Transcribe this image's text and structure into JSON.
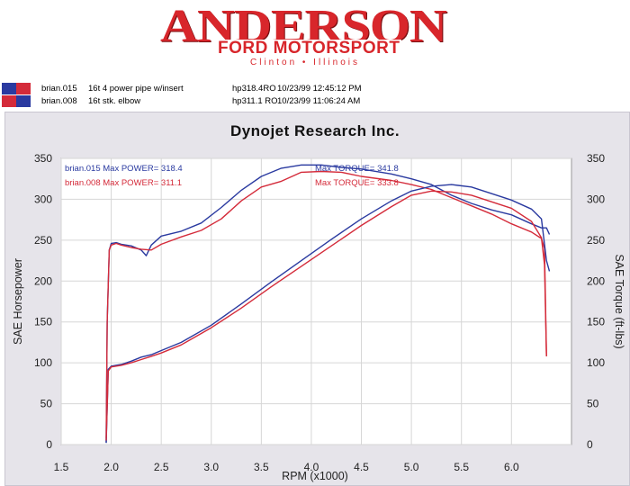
{
  "logo": {
    "name": "ANDERSON",
    "subtitle": "FORD MOTORSPORT",
    "location": "Clinton • Illinois"
  },
  "runs": [
    {
      "file": "brian.015",
      "desc": "16t 4 power pipe w/insert",
      "hp": "hp318.4RO",
      "stamp": "10/23/99 12:45:12 PM",
      "color": "#2a3aa0"
    },
    {
      "file": "brian.008",
      "desc": "16t stk. elbow",
      "hp": "hp311.1   RO",
      "stamp": "10/23/99 11:06:24 AM",
      "color": "#d42b3a"
    }
  ],
  "chart_data": {
    "type": "line",
    "title": "Dynojet Research Inc.",
    "xlabel": "RPM (x1000)",
    "ylabel": "SAE Horsepower",
    "y2label": "SAE Torque (ft-lbs)",
    "xlim": [
      1.5,
      6.6
    ],
    "ylim": [
      0,
      350
    ],
    "xticks": [
      "1.5",
      "2.0",
      "2.5",
      "3.0",
      "3.5",
      "4.0",
      "4.5",
      "5.0",
      "5.5",
      "6.0"
    ],
    "yticks": [
      "0",
      "50",
      "100",
      "150",
      "200",
      "250",
      "300",
      "350"
    ],
    "annotations": {
      "power": [
        {
          "text": "brian.015  Max POWER= 318.4",
          "color": "#2a3aa0"
        },
        {
          "text": "brian.008  Max POWER= 311.1",
          "color": "#d42b3a"
        }
      ],
      "torque": [
        {
          "text": "Max TORQUE= 341.8",
          "color": "#2a3aa0"
        },
        {
          "text": "Max TORQUE= 333.8",
          "color": "#d42b3a"
        }
      ]
    },
    "series": [
      {
        "name": "brian.015",
        "quantity": "torque",
        "color": "#2a3aa0",
        "x": [
          1.95,
          1.96,
          1.98,
          2.0,
          2.05,
          2.1,
          2.2,
          2.3,
          2.35,
          2.4,
          2.5,
          2.7,
          2.9,
          3.1,
          3.3,
          3.5,
          3.7,
          3.9,
          4.1,
          4.3,
          4.5,
          4.8,
          5.0,
          5.2,
          5.4,
          5.6,
          5.8,
          6.0,
          6.2,
          6.3,
          6.35,
          6.38
        ],
        "y": [
          3,
          150,
          238,
          246,
          247,
          245,
          243,
          238,
          231,
          244,
          255,
          261,
          271,
          290,
          311,
          328,
          338,
          342,
          342,
          339,
          337,
          331,
          325,
          318,
          305,
          295,
          287,
          281,
          270,
          265,
          265,
          257
        ]
      },
      {
        "name": "brian.008",
        "quantity": "torque",
        "color": "#d42b3a",
        "x": [
          1.95,
          1.96,
          1.98,
          2.0,
          2.05,
          2.1,
          2.2,
          2.3,
          2.4,
          2.5,
          2.7,
          2.9,
          3.1,
          3.3,
          3.5,
          3.7,
          3.9,
          4.1,
          4.3,
          4.5,
          4.8,
          5.0,
          5.2,
          5.4,
          5.6,
          5.8,
          6.0,
          6.2,
          6.3,
          6.33,
          6.35
        ],
        "y": [
          8,
          150,
          238,
          244,
          246,
          244,
          241,
          239,
          238,
          245,
          254,
          262,
          276,
          298,
          315,
          322,
          333,
          334,
          333,
          328,
          323,
          318,
          312,
          302,
          292,
          282,
          270,
          260,
          252,
          240,
          108
        ]
      },
      {
        "name": "brian.015",
        "quantity": "power",
        "color": "#2a3aa0",
        "x": [
          1.95,
          1.97,
          2.0,
          2.1,
          2.2,
          2.3,
          2.4,
          2.5,
          2.7,
          3.0,
          3.3,
          3.6,
          3.9,
          4.2,
          4.5,
          4.8,
          5.0,
          5.2,
          5.4,
          5.6,
          5.8,
          6.0,
          6.2,
          6.3,
          6.35,
          6.38
        ],
        "y": [
          2,
          92,
          96,
          98,
          102,
          107,
          110,
          115,
          125,
          146,
          172,
          199,
          225,
          251,
          276,
          298,
          310,
          316,
          318,
          315,
          307,
          299,
          288,
          276,
          225,
          212
        ]
      },
      {
        "name": "brian.008",
        "quantity": "power",
        "color": "#d42b3a",
        "x": [
          1.95,
          1.97,
          2.0,
          2.1,
          2.2,
          2.3,
          2.4,
          2.5,
          2.7,
          3.0,
          3.3,
          3.6,
          3.9,
          4.2,
          4.5,
          4.8,
          5.0,
          5.2,
          5.4,
          5.6,
          5.8,
          6.0,
          6.2,
          6.3,
          6.33,
          6.35
        ],
        "y": [
          5,
          90,
          95,
          97,
          100,
          104,
          108,
          112,
          122,
          143,
          167,
          193,
          218,
          243,
          268,
          291,
          305,
          310,
          309,
          305,
          297,
          289,
          273,
          253,
          220,
          108
        ]
      }
    ]
  }
}
